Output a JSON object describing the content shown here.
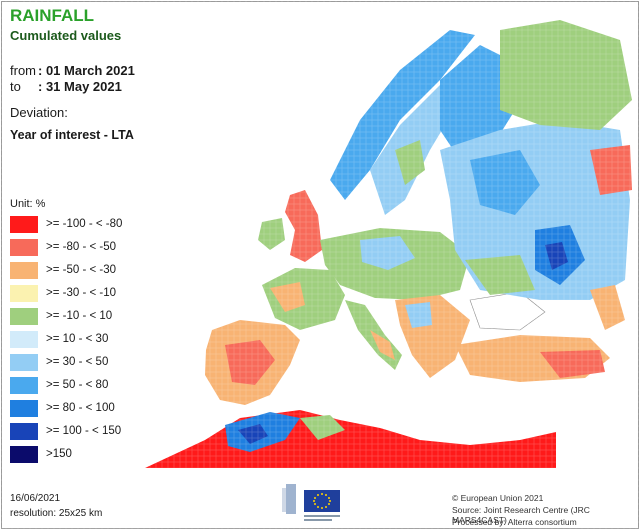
{
  "header": {
    "title": "RAINFALL",
    "subtitle": "Cumulated values"
  },
  "period": {
    "from_label": "from",
    "from_value": ": 01 March 2021",
    "to_label": "to",
    "to_value": ": 31 May 2021"
  },
  "deviation": {
    "label": "Deviation:",
    "type": "Year of interest - LTA"
  },
  "legend": {
    "unit": "Unit:  %",
    "classes": [
      {
        "label": ">= -100 - < -80",
        "color": "#ff1a1a"
      },
      {
        "label": ">= -80 - < -50",
        "color": "#f76a5a"
      },
      {
        "label": ">= -50 - < -30",
        "color": "#f8b373"
      },
      {
        "label": ">= -30 - < -10",
        "color": "#fbf2b0"
      },
      {
        "label": ">= -10 - < 10",
        "color": "#9fcf7e"
      },
      {
        "label": ">= 10 - < 30",
        "color": "#d2ebfa"
      },
      {
        "label": ">= 30 - < 50",
        "color": "#93cdf4"
      },
      {
        "label": ">= 50 - < 80",
        "color": "#4aa9ee"
      },
      {
        "label": ">= 80 - < 100",
        "color": "#1f7fe0"
      },
      {
        "label": ">= 100 - < 150",
        "color": "#1844b8"
      },
      {
        "label": ">150",
        "color": "#0b0b6b"
      }
    ]
  },
  "footer": {
    "date": "16/06/2021",
    "resolution": "resolution:  25x25 km",
    "logo_icon": "eu-commission-logo-icon",
    "credits": [
      "© European Union 2021",
      "Source: Joint Research Centre (JRC MARS4CAST)",
      "Processed by: Alterra consortium"
    ]
  }
}
